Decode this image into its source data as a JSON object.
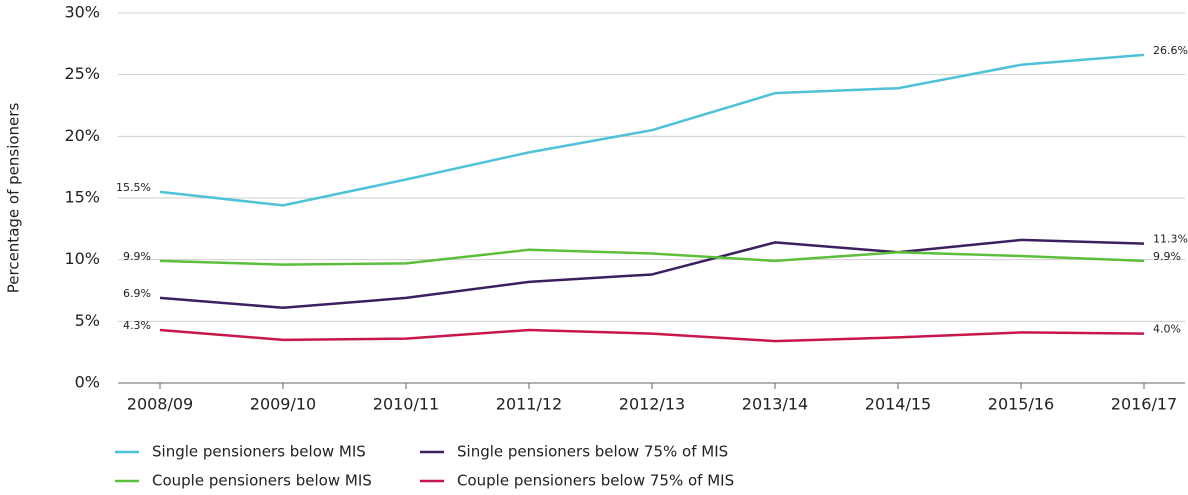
{
  "chart_data": {
    "type": "line",
    "ylabel": "Percentage of pensioners",
    "categories": [
      "2008/09",
      "2009/10",
      "2010/11",
      "2011/12",
      "2012/13",
      "2013/14",
      "2014/15",
      "2015/16",
      "2016/17"
    ],
    "series": [
      {
        "name": "Single pensioners below MIS",
        "color": "#4fc1d8",
        "values": [
          15.5,
          14.4,
          16.5,
          18.7,
          20.5,
          23.5,
          23.9,
          25.8,
          26.6
        ],
        "value_labels": [
          "15.5%",
          null,
          null,
          null,
          null,
          null,
          null,
          null,
          "26.6%"
        ]
      },
      {
        "name": "Single pensioners below 75% of MIS",
        "color": "#3b1f5f",
        "values": [
          6.9,
          6.1,
          6.9,
          8.2,
          8.8,
          11.4,
          10.6,
          11.6,
          11.3
        ],
        "value_labels": [
          "6.9%",
          null,
          null,
          null,
          null,
          null,
          null,
          null,
          "11.3%"
        ]
      },
      {
        "name": "Couple pensioners below MIS",
        "color": "#5cbf3c",
        "values": [
          9.9,
          9.6,
          9.7,
          10.8,
          10.5,
          9.9,
          10.6,
          10.3,
          9.9
        ],
        "value_labels": [
          "9.9%",
          null,
          null,
          null,
          null,
          null,
          null,
          null,
          "9.9%"
        ]
      },
      {
        "name": "Couple pensioners below 75% of MIS",
        "color": "#c8174a",
        "values": [
          4.3,
          3.5,
          3.6,
          4.3,
          4.0,
          3.4,
          3.7,
          4.1,
          4.0
        ],
        "value_labels": [
          "4.3%",
          null,
          null,
          null,
          null,
          null,
          null,
          null,
          "4.0%"
        ]
      }
    ],
    "ylim": [
      0,
      30
    ],
    "yticks": [
      {
        "value": 0,
        "label": "0%"
      },
      {
        "value": 5,
        "label": "5%"
      },
      {
        "value": 10,
        "label": "10%"
      },
      {
        "value": 15,
        "label": "15%"
      },
      {
        "value": 20,
        "label": "20%"
      },
      {
        "value": 25,
        "label": "25%"
      },
      {
        "value": 30,
        "label": "30%"
      }
    ],
    "grid": true
  }
}
